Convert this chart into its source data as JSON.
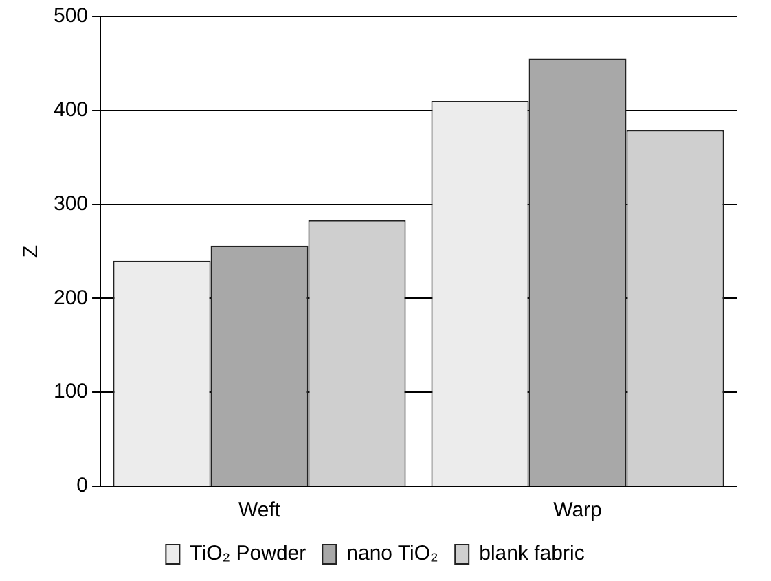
{
  "chart_data": {
    "type": "bar",
    "categories": [
      "Weft",
      "Warp"
    ],
    "ylabel": "Z",
    "ylim": [
      0,
      500
    ],
    "yticks": [
      0,
      100,
      200,
      300,
      400,
      500
    ],
    "grid": "y",
    "legend": "bottom",
    "series": [
      {
        "name": "TiO₂ Powder",
        "color": "#ececec",
        "values": [
          240,
          410
        ]
      },
      {
        "name": "nano TiO₂",
        "color": "#a8a8a8",
        "values": [
          256,
          455
        ]
      },
      {
        "name": "blank fabric",
        "color": "#cfcfcf",
        "values": [
          283,
          379
        ]
      }
    ]
  }
}
